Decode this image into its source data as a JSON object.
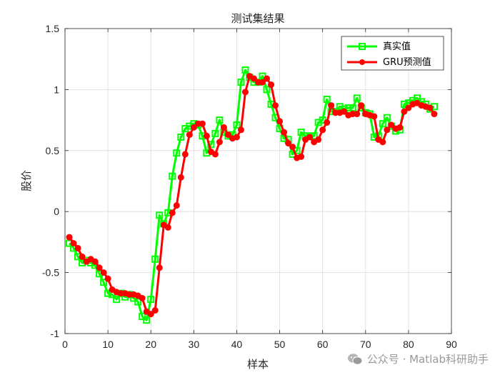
{
  "chart_data": {
    "type": "line",
    "title": "测试集结果",
    "xlabel": "样本",
    "ylabel": "股价",
    "xlim": [
      0,
      90
    ],
    "ylim": [
      -1,
      1.5
    ],
    "xticks": [
      0,
      10,
      20,
      30,
      40,
      50,
      60,
      70,
      80,
      90
    ],
    "yticks": [
      -1,
      -0.5,
      0,
      0.5,
      1,
      1.5
    ],
    "xtick_labels": [
      "0",
      "10",
      "20",
      "30",
      "40",
      "50",
      "60",
      "70",
      "80",
      "90"
    ],
    "ytick_labels": [
      "-1",
      "-0.5",
      "0",
      "0.5",
      "1",
      "1.5"
    ],
    "grid": true,
    "legend_position": "top-right",
    "x": [
      1,
      2,
      3,
      4,
      5,
      6,
      7,
      8,
      9,
      10,
      11,
      12,
      13,
      14,
      15,
      16,
      17,
      18,
      19,
      20,
      21,
      22,
      23,
      24,
      25,
      26,
      27,
      28,
      29,
      30,
      31,
      32,
      33,
      34,
      35,
      36,
      37,
      38,
      39,
      40,
      41,
      42,
      43,
      44,
      45,
      46,
      47,
      48,
      49,
      50,
      51,
      52,
      53,
      54,
      55,
      56,
      57,
      58,
      59,
      60,
      61,
      62,
      63,
      64,
      65,
      66,
      67,
      68,
      69,
      70,
      71,
      72,
      73,
      74,
      75,
      76,
      77,
      78,
      79,
      80,
      81,
      82,
      83,
      84,
      85,
      86
    ],
    "series": [
      {
        "name": "真实值",
        "color": "#00ff00",
        "marker": "square",
        "values": [
          -0.26,
          -0.3,
          -0.37,
          -0.42,
          -0.4,
          -0.42,
          -0.44,
          -0.51,
          -0.58,
          -0.67,
          -0.68,
          -0.72,
          -0.67,
          -0.7,
          -0.68,
          -0.71,
          -0.74,
          -0.86,
          -0.89,
          -0.72,
          -0.39,
          -0.03,
          -0.1,
          -0.01,
          0.29,
          0.48,
          0.61,
          0.68,
          0.7,
          0.72,
          0.71,
          0.62,
          0.48,
          0.55,
          0.64,
          0.75,
          0.65,
          0.62,
          0.63,
          0.71,
          1.06,
          1.16,
          1.1,
          1.06,
          1.06,
          1.11,
          1.0,
          0.88,
          0.77,
          0.68,
          0.6,
          0.59,
          0.47,
          0.5,
          0.65,
          0.62,
          0.62,
          0.62,
          0.73,
          0.75,
          0.92,
          0.82,
          0.82,
          0.86,
          0.84,
          0.85,
          0.85,
          0.93,
          0.85,
          0.81,
          0.8,
          0.61,
          0.62,
          0.72,
          0.77,
          0.7,
          0.66,
          0.67,
          0.88,
          0.89,
          0.91,
          0.93,
          0.9,
          0.88,
          0.84,
          0.86
        ]
      },
      {
        "name": "GRU预测值",
        "color": "#ff0000",
        "marker": "circle",
        "values": [
          -0.21,
          -0.26,
          -0.3,
          -0.37,
          -0.41,
          -0.39,
          -0.41,
          -0.46,
          -0.5,
          -0.55,
          -0.64,
          -0.66,
          -0.67,
          -0.67,
          -0.68,
          -0.68,
          -0.69,
          -0.71,
          -0.82,
          -0.84,
          -0.81,
          -0.46,
          -0.11,
          -0.13,
          -0.01,
          0.05,
          0.28,
          0.47,
          0.63,
          0.69,
          0.72,
          0.72,
          0.62,
          0.49,
          0.47,
          0.57,
          0.69,
          0.63,
          0.6,
          0.61,
          0.67,
          0.98,
          1.11,
          1.09,
          1.06,
          1.06,
          1.09,
          1.04,
          0.87,
          0.74,
          0.65,
          0.56,
          0.53,
          0.44,
          0.45,
          0.59,
          0.61,
          0.57,
          0.59,
          0.67,
          0.73,
          0.87,
          0.81,
          0.81,
          0.82,
          0.79,
          0.8,
          0.8,
          0.87,
          0.8,
          0.79,
          0.78,
          0.59,
          0.57,
          0.67,
          0.71,
          0.68,
          0.69,
          0.82,
          0.85,
          0.88,
          0.89,
          0.87,
          0.86,
          0.85,
          0.8
        ]
      }
    ]
  },
  "watermark": {
    "text": "公众号 · Matlab科研助手",
    "icon": "wechat-icon"
  }
}
